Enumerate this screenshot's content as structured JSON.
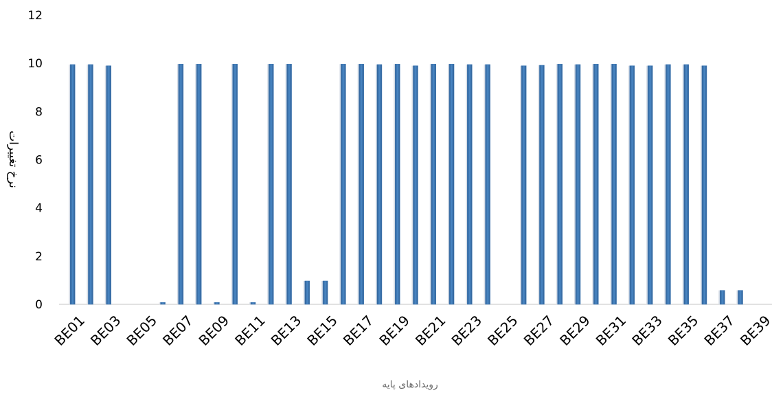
{
  "chart_data": {
    "type": "bar",
    "title": "",
    "xlabel": "رویدادهای پایه",
    "ylabel": "نرخ تغییرات",
    "ylim": [
      0,
      12
    ],
    "yticks": [
      0,
      2,
      4,
      6,
      8,
      10,
      12
    ],
    "grid": false,
    "legend": "none",
    "bar_color": "#3d78b5",
    "categories": [
      "BE01",
      "BE02",
      "BE03",
      "BE04",
      "BE05",
      "BE06",
      "BE07",
      "BE08",
      "BE09",
      "BE10",
      "BE11",
      "BE12",
      "BE13",
      "BE14",
      "BE15",
      "BE16",
      "BE17",
      "BE18",
      "BE19",
      "BE20",
      "BE21",
      "BE22",
      "BE23",
      "BE24",
      "BE25",
      "BE26",
      "BE27",
      "BE28",
      "BE29",
      "BE30",
      "BE31",
      "BE32",
      "BE33",
      "BE34",
      "BE35",
      "BE36",
      "BE37",
      "BE38",
      "BE39"
    ],
    "tick_labels": [
      "BE01",
      "BE03",
      "BE05",
      "BE07",
      "BE09",
      "BE11",
      "BE13",
      "BE15",
      "BE17",
      "BE19",
      "BE21",
      "BE23",
      "BE25",
      "BE27",
      "BE29",
      "BE31",
      "BE33",
      "BE35",
      "BE37",
      "BE39"
    ],
    "values": [
      9.95,
      9.95,
      9.9,
      0,
      0,
      0.08,
      9.97,
      9.97,
      0.08,
      9.97,
      0.08,
      9.97,
      9.97,
      0.97,
      0.97,
      9.97,
      9.97,
      9.95,
      9.97,
      9.9,
      9.97,
      9.97,
      9.95,
      9.95,
      0,
      9.9,
      9.92,
      9.97,
      9.95,
      9.97,
      9.97,
      9.9,
      9.9,
      9.95,
      9.95,
      9.9,
      0.58,
      0.58,
      0
    ]
  }
}
